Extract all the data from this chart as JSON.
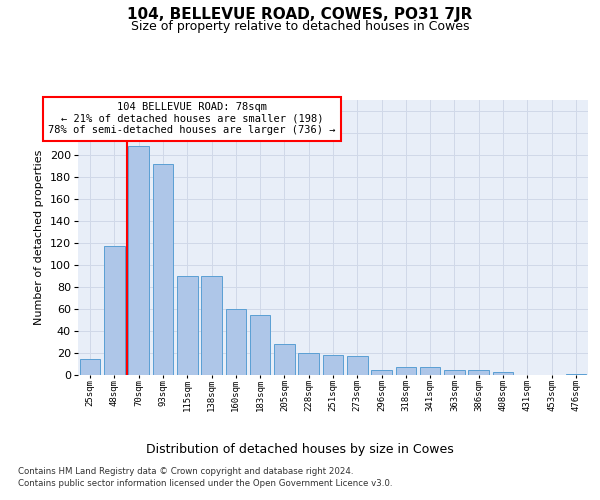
{
  "title": "104, BELLEVUE ROAD, COWES, PO31 7JR",
  "subtitle": "Size of property relative to detached houses in Cowes",
  "xlabel": "Distribution of detached houses by size in Cowes",
  "ylabel": "Number of detached properties",
  "footer_line1": "Contains HM Land Registry data © Crown copyright and database right 2024.",
  "footer_line2": "Contains public sector information licensed under the Open Government Licence v3.0.",
  "annotation_line1": "104 BELLEVUE ROAD: 78sqm",
  "annotation_line2": "← 21% of detached houses are smaller (198)",
  "annotation_line3": "78% of semi-detached houses are larger (736) →",
  "bar_color": "#aec6e8",
  "bar_edge_color": "#5a9fd4",
  "red_line_index": 1.5,
  "categories": [
    "25sqm",
    "48sqm",
    "70sqm",
    "93sqm",
    "115sqm",
    "138sqm",
    "160sqm",
    "183sqm",
    "205sqm",
    "228sqm",
    "251sqm",
    "273sqm",
    "296sqm",
    "318sqm",
    "341sqm",
    "363sqm",
    "386sqm",
    "408sqm",
    "431sqm",
    "453sqm",
    "476sqm"
  ],
  "values": [
    15,
    117,
    208,
    192,
    90,
    90,
    60,
    55,
    28,
    20,
    18,
    17,
    5,
    7,
    7,
    5,
    5,
    3,
    0,
    0,
    1
  ],
  "ylim": [
    0,
    250
  ],
  "yticks": [
    0,
    20,
    40,
    60,
    80,
    100,
    120,
    140,
    160,
    180,
    200,
    220,
    240
  ],
  "grid_color": "#d0d8e8",
  "bg_color": "#e8eef8",
  "fig_bg_color": "#ffffff"
}
